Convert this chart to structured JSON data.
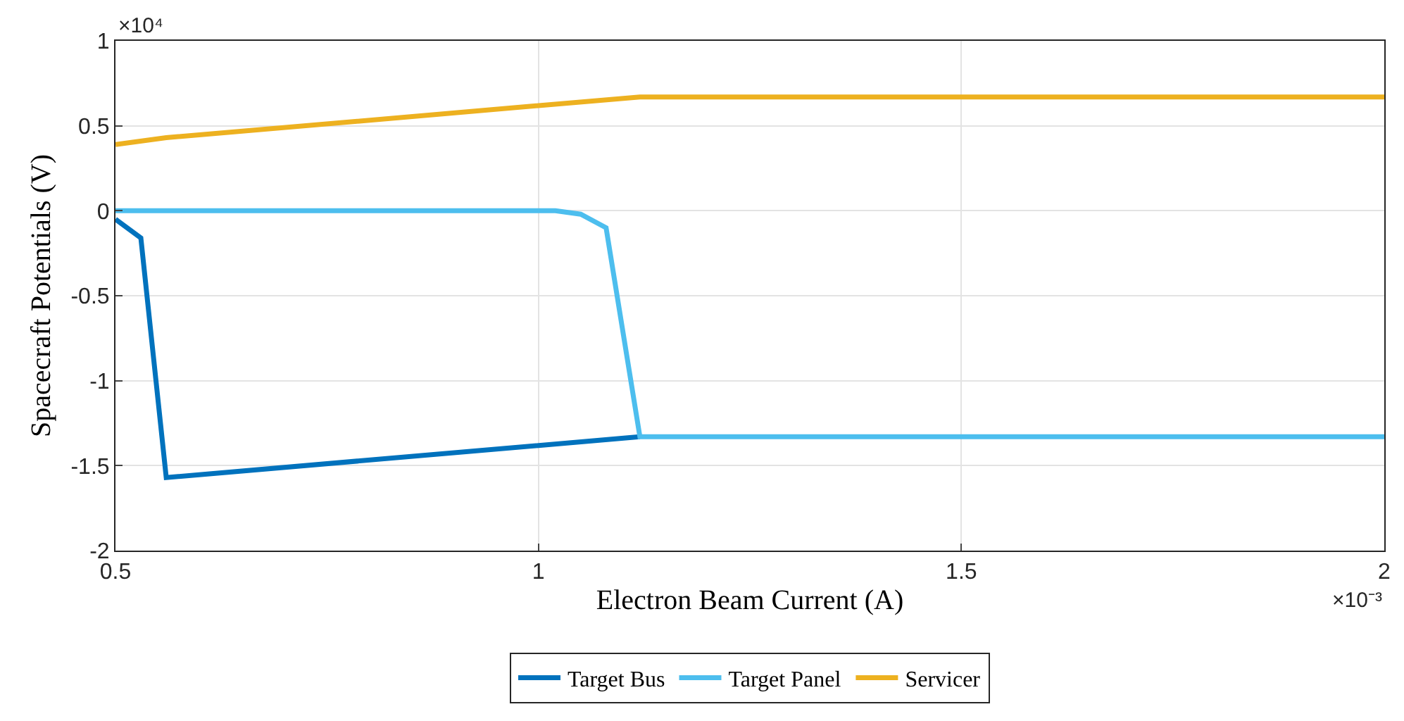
{
  "chart_data": {
    "type": "line",
    "xlabel": "Electron Beam Current (A)",
    "ylabel": "Spacecraft Potentials (V)",
    "xlim": [
      0.5,
      2
    ],
    "xticks": [
      0.5,
      1,
      1.5,
      2
    ],
    "ylim": [
      -2,
      1
    ],
    "yticks": [
      -2,
      -1.5,
      -1,
      -0.5,
      0,
      0.5,
      1
    ],
    "annotations": [
      "×10⁴",
      "×10⁻³"
    ],
    "grid": true,
    "legend": "bottom",
    "marker": "none",
    "line_style": "solid",
    "series": [
      {
        "name": "Target Bus",
        "color": "#0072bd",
        "x": [
          0.5,
          0.53,
          0.56,
          1.12
        ],
        "values": [
          -0.05,
          -0.16,
          -1.57,
          -1.33
        ]
      },
      {
        "name": "Target Panel",
        "color": "#4dbeee",
        "x": [
          0.5,
          1.02,
          1.05,
          1.08,
          1.12,
          2
        ],
        "values": [
          0,
          0,
          -0.02,
          -0.1,
          -1.33,
          -1.33
        ]
      },
      {
        "name": "Servicer",
        "color": "#edb120",
        "x": [
          0.5,
          0.56,
          1.12,
          2
        ],
        "values": [
          0.39,
          0.43,
          0.67,
          0.67
        ]
      }
    ]
  }
}
